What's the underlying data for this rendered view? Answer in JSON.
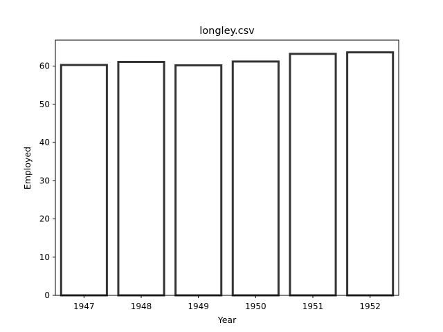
{
  "chart_data": {
    "type": "bar",
    "title": "longley.csv",
    "xlabel": "Year",
    "ylabel": "Employed",
    "categories": [
      "1947",
      "1948",
      "1949",
      "1950",
      "1951",
      "1952"
    ],
    "values": [
      60.3,
      61.1,
      60.2,
      61.2,
      63.2,
      63.6
    ],
    "ylim": [
      0,
      66.8
    ],
    "yticks": [
      "0",
      "10",
      "20",
      "30",
      "40",
      "50",
      "60"
    ],
    "grid": false,
    "legend": "none",
    "colors": {
      "bar_fill": "#ffffff",
      "bar_edge": "#333333",
      "axis": "#000000"
    }
  }
}
